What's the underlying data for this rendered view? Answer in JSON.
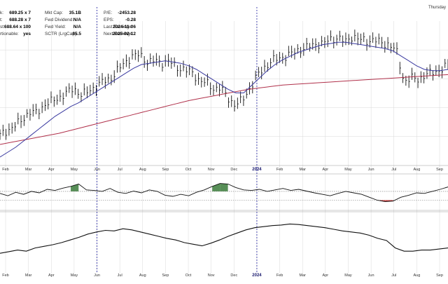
{
  "date_label": "Thursday",
  "header_stats": {
    "col1": [
      {
        "label": "k:",
        "value": "689.25 x 7"
      },
      {
        "label": "t:",
        "value": "688.28 x 7"
      },
      {
        "label": "st:",
        "value": "688.64 x 100"
      },
      {
        "label": "rtionable:",
        "value": "yes"
      }
    ],
    "col2": [
      {
        "label": "Mkt Cap:",
        "value": "35.1B"
      },
      {
        "label": "Fwd Dividend:",
        "value": "N/A"
      },
      {
        "label": "Fwd Yield:",
        "value": "N/A"
      },
      {
        "label": "SCTR (LrgCap):",
        "value": "85.5"
      }
    ],
    "col3": [
      {
        "label": "P/E:",
        "value": "-2453.28"
      },
      {
        "label": "EPS:",
        "value": "-0.28"
      },
      {
        "label": "Last Earnings:",
        "value": "2024-11-06"
      },
      {
        "label": "Next Earnings:",
        "value": "2025-02-12"
      }
    ]
  },
  "colors": {
    "price_bars": "#111111",
    "sma_short": "#3a3aa0",
    "sma_long": "#b0304a",
    "panel_line": "#111111",
    "marker_line": "#2020a0",
    "overbought_fill": "#3a7a3a",
    "oversold_fill": "#c02020",
    "grid": "#d8d8d8"
  },
  "chart_data": {
    "type": "line",
    "x_labels": [
      "Feb",
      "Mar",
      "Apr",
      "May",
      "Jun",
      "Jul",
      "Aug",
      "Sep",
      "Oct",
      "Nov",
      "Dec",
      "2024",
      "Feb",
      "Mar",
      "Apr",
      "May",
      "Jun",
      "Jul",
      "Aug",
      "Sep"
    ],
    "year_marker": "2024",
    "vertical_markers": [
      "Jun",
      "2024"
    ],
    "grid": true,
    "price_panel": {
      "bar_type": "ohlc",
      "close": [
        0.14,
        0.18,
        0.22,
        0.27,
        0.34,
        0.33,
        0.4,
        0.43,
        0.46,
        0.5,
        0.54,
        0.49,
        0.51,
        0.56,
        0.6,
        0.62,
        0.7,
        0.76,
        0.82,
        0.83,
        0.77,
        0.78,
        0.76,
        0.78,
        0.72,
        0.71,
        0.68,
        0.62,
        0.59,
        0.54,
        0.55,
        0.46,
        0.4,
        0.44,
        0.54,
        0.65,
        0.72,
        0.78,
        0.8,
        0.82,
        0.85,
        0.88,
        0.9,
        0.92,
        0.93,
        0.96,
        0.98,
        0.94,
        0.99,
        0.96,
        0.95,
        0.96,
        0.93,
        0.92,
        0.86,
        0.6,
        0.63,
        0.62,
        0.66,
        0.68,
        0.7,
        0.74
      ],
      "sma_short": [
        0.0,
        0.04,
        0.08,
        0.13,
        0.18,
        0.23,
        0.28,
        0.33,
        0.37,
        0.41,
        0.44,
        0.48,
        0.52,
        0.56,
        0.6,
        0.64,
        0.68,
        0.72,
        0.75,
        0.76,
        0.77,
        0.78,
        0.77,
        0.76,
        0.74,
        0.71,
        0.67,
        0.63,
        0.59,
        0.55,
        0.52,
        0.52,
        0.58,
        0.64,
        0.7,
        0.75,
        0.79,
        0.82,
        0.85,
        0.87,
        0.89,
        0.91,
        0.92,
        0.93,
        0.93,
        0.92,
        0.91,
        0.9,
        0.89,
        0.88,
        0.86,
        0.82,
        0.78,
        0.74,
        0.71,
        0.7,
        0.7,
        0.71
      ],
      "sma_long": [
        0.0,
        0.03,
        0.06,
        0.09,
        0.12,
        0.15,
        0.19,
        0.23,
        0.27,
        0.31,
        0.35,
        0.39,
        0.43,
        0.47,
        0.51,
        0.55,
        0.59,
        0.62,
        0.65,
        0.68,
        0.71,
        0.74,
        0.76,
        0.78,
        0.8,
        0.81,
        0.82,
        0.83,
        0.84,
        0.85,
        0.86,
        0.87,
        0.88,
        0.89,
        0.9,
        0.91,
        0.92,
        0.93,
        0.94
      ]
    },
    "oscillator_panel": {
      "ylim": [
        0,
        1
      ],
      "reference_lines": [
        0.25,
        0.55
      ],
      "values": [
        0.48,
        0.4,
        0.52,
        0.45,
        0.55,
        0.5,
        0.62,
        0.58,
        0.66,
        0.72,
        0.8,
        0.6,
        0.58,
        0.55,
        0.65,
        0.52,
        0.48,
        0.56,
        0.5,
        0.6,
        0.55,
        0.42,
        0.38,
        0.45,
        0.4,
        0.52,
        0.6,
        0.72,
        0.82,
        0.8,
        0.68,
        0.6,
        0.58,
        0.62,
        0.55,
        0.6,
        0.65,
        0.58,
        0.62,
        0.56,
        0.5,
        0.45,
        0.4,
        0.48,
        0.55,
        0.5,
        0.45,
        0.35,
        0.25,
        0.2,
        0.22,
        0.35,
        0.42,
        0.5,
        0.48,
        0.55,
        0.62,
        0.7
      ]
    },
    "relative_panel": {
      "values": [
        0.3,
        0.33,
        0.36,
        0.34,
        0.4,
        0.43,
        0.46,
        0.5,
        0.55,
        0.6,
        0.66,
        0.7,
        0.73,
        0.72,
        0.76,
        0.74,
        0.7,
        0.66,
        0.62,
        0.58,
        0.55,
        0.5,
        0.47,
        0.44,
        0.49,
        0.55,
        0.62,
        0.68,
        0.74,
        0.78,
        0.8,
        0.82,
        0.83,
        0.85,
        0.84,
        0.82,
        0.8,
        0.78,
        0.75,
        0.72,
        0.7,
        0.68,
        0.64,
        0.58,
        0.54,
        0.4,
        0.34,
        0.34,
        0.36,
        0.36,
        0.38,
        0.4
      ]
    }
  }
}
